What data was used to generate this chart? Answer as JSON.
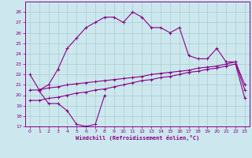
{
  "xlabel": "Windchill (Refroidissement éolien,°C)",
  "bg_color": "#cce8ee",
  "grid_color": "#aacccc",
  "line_color": "#880088",
  "xlim": [
    -0.5,
    23.5
  ],
  "ylim": [
    17,
    29
  ],
  "xticks": [
    0,
    1,
    2,
    3,
    4,
    5,
    6,
    7,
    8,
    9,
    10,
    11,
    12,
    13,
    14,
    15,
    16,
    17,
    18,
    19,
    20,
    21,
    22,
    23
  ],
  "yticks": [
    17,
    18,
    19,
    20,
    21,
    22,
    23,
    24,
    25,
    26,
    27,
    28
  ],
  "series1_x": [
    0,
    1,
    2,
    3,
    4,
    5,
    6,
    7,
    8,
    9,
    10,
    11,
    12,
    13,
    14,
    15,
    16,
    17,
    18,
    19,
    20,
    21,
    22,
    23
  ],
  "series1_y": [
    22.0,
    20.5,
    21.0,
    22.5,
    24.5,
    25.5,
    26.5,
    27.0,
    27.5,
    27.5,
    27.0,
    28.0,
    27.5,
    26.5,
    26.5,
    26.0,
    26.5,
    23.8,
    23.5,
    23.5,
    24.5,
    23.2,
    23.2,
    21.0
  ],
  "series2_x": [
    0,
    1,
    2,
    3,
    4,
    5,
    6,
    7,
    8,
    9,
    10,
    11,
    12,
    13,
    14,
    15,
    16,
    17,
    18,
    19,
    20,
    21,
    22,
    23
  ],
  "series2_y": [
    19.5,
    19.5,
    19.7,
    19.8,
    20.0,
    20.2,
    20.3,
    20.5,
    20.6,
    20.8,
    21.0,
    21.2,
    21.4,
    21.5,
    21.7,
    21.8,
    22.0,
    22.2,
    22.3,
    22.5,
    22.6,
    22.8,
    23.0,
    19.7
  ],
  "series3_x": [
    0,
    1,
    2,
    3,
    4,
    5,
    6,
    7,
    8,
    9,
    10,
    11,
    12,
    13,
    14,
    15,
    16,
    17,
    18,
    19,
    20,
    21,
    22,
    23
  ],
  "series3_y": [
    20.5,
    20.5,
    20.7,
    20.8,
    21.0,
    21.1,
    21.2,
    21.3,
    21.4,
    21.5,
    21.6,
    21.7,
    21.8,
    22.0,
    22.1,
    22.2,
    22.3,
    22.4,
    22.6,
    22.7,
    22.8,
    23.0,
    23.2,
    20.5
  ],
  "series4_x": [
    1,
    2,
    3,
    4,
    5,
    6,
    7,
    8
  ],
  "series4_y": [
    20.4,
    19.2,
    19.2,
    18.5,
    17.2,
    17.0,
    17.2,
    20.0
  ]
}
